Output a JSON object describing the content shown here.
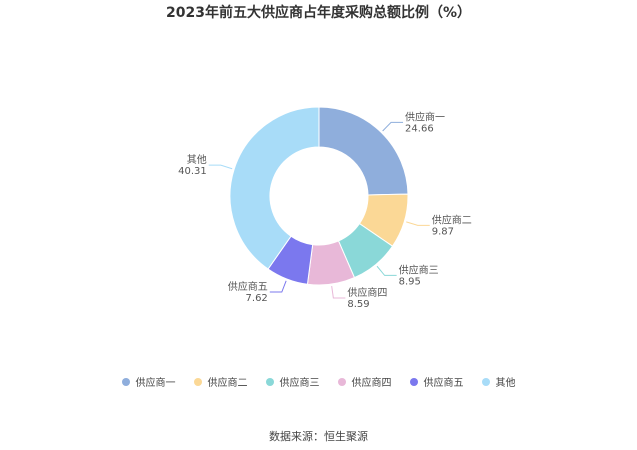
{
  "chart_data": {
    "type": "pie",
    "title": "2023年前五大供应商占年度采购总额比例（%）",
    "donut": true,
    "legend_position": "bottom",
    "categories": [
      "供应商一",
      "供应商二",
      "供应商三",
      "供应商四",
      "供应商五",
      "其他"
    ],
    "values": [
      24.66,
      9.87,
      8.95,
      8.59,
      7.62,
      40.31
    ],
    "value_labels": [
      "24.66",
      "9.87",
      "8.95",
      "8.59",
      "7.62",
      "40.31"
    ],
    "colors": [
      "#8faedc",
      "#fbd896",
      "#8ad8d8",
      "#e8b8d8",
      "#7b78ee",
      "#a8dcf8"
    ]
  },
  "source": "数据来源：恒生聚源"
}
